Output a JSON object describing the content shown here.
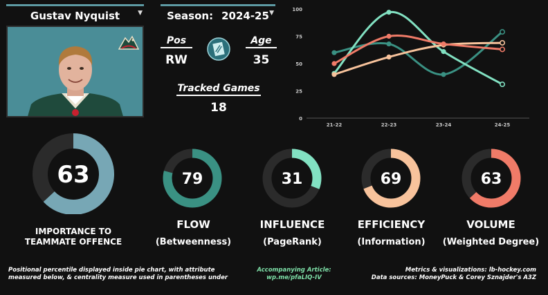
{
  "player": {
    "name": "Gustav Nyquist",
    "season_label": "Season:",
    "season_value": "2024-25",
    "pos_label": "Pos",
    "pos_value": "RW",
    "age_label": "Age",
    "age_value": "35",
    "games_label": "Tracked Games",
    "games_value": "18"
  },
  "colors": {
    "importance": "#77a7b5",
    "flow": "#3a9183",
    "influence": "#82e1c2",
    "efficiency": "#f8c39c",
    "volume": "#f07b68",
    "track": "#2b2b2b",
    "accent": "#5d9aa3"
  },
  "metrics": [
    {
      "key": "importance",
      "value": 63,
      "title": "IMPORTANCE TO",
      "subtitle": "TEAMMATE OFFENCE"
    },
    {
      "key": "flow",
      "value": 79,
      "title": "FLOW",
      "subtitle": "(Betweenness)"
    },
    {
      "key": "influence",
      "value": 31,
      "title": "INFLUENCE",
      "subtitle": "(PageRank)"
    },
    {
      "key": "efficiency",
      "value": 69,
      "title": "EFFICIENCY",
      "subtitle": "(Information)"
    },
    {
      "key": "volume",
      "value": 63,
      "title": "VOLUME",
      "subtitle": "(Weighted Degree)"
    }
  ],
  "chart_data": {
    "type": "line",
    "x": [
      "21-22",
      "22-23",
      "23-24",
      "24-25"
    ],
    "yticks": [
      0,
      25,
      50,
      75,
      100
    ],
    "ylim": [
      0,
      100
    ],
    "series": [
      {
        "key": "flow",
        "color": "#3a9183",
        "values": [
          60,
          68,
          40,
          79
        ]
      },
      {
        "key": "influence",
        "color": "#82e1c2",
        "values": [
          41,
          97,
          61,
          31
        ]
      },
      {
        "key": "efficiency",
        "color": "#f8c39c",
        "values": [
          40,
          56,
          67,
          69
        ]
      },
      {
        "key": "volume",
        "color": "#f07b68",
        "values": [
          50,
          75,
          68,
          63
        ]
      }
    ]
  },
  "footer": {
    "left_line1": "Positional percentile displayed inside pie chart, with attribute",
    "left_line2": "measured below, & centrality measure used in parentheses under",
    "mid_line1": "Accompanying Article:",
    "mid_line2": "wp.me/pfaLIQ-IV",
    "right_line1": "Metrics & visualizations: lb-hockey.com",
    "right_line2": "Data sources: MoneyPuck & Corey Sznajder's A3Z"
  }
}
